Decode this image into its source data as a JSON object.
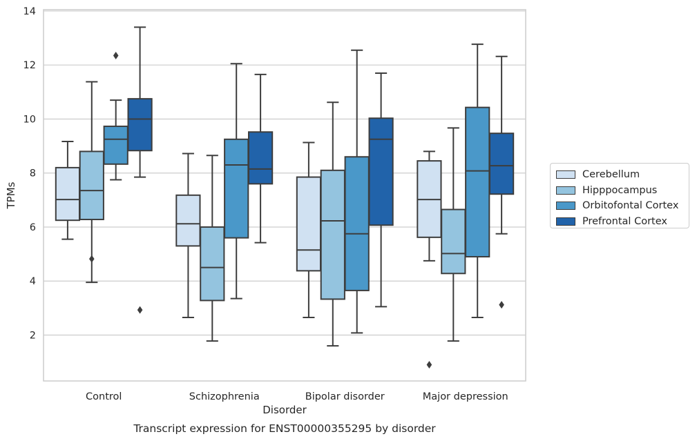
{
  "chart_data": {
    "type": "box",
    "title": "",
    "caption": "Transcript expression for ENST00000355295 by disorder",
    "xlabel": "Disorder",
    "ylabel": "TPMs",
    "ylim": [
      0.3,
      14.05
    ],
    "yticks": [
      2,
      4,
      6,
      8,
      10,
      12,
      14
    ],
    "grid": "horizontal",
    "legend_placement": "outside-right",
    "categories": [
      "Control",
      "Schizophrenia",
      "Bipolar disorder",
      "Major depression"
    ],
    "series": [
      {
        "name": "Cerebellum",
        "color": "#d0e1f2",
        "boxes": [
          {
            "whisker_low": 5.55,
            "q1": 6.25,
            "median": 7.02,
            "q3": 8.2,
            "whisker_high": 9.17,
            "outliers": []
          },
          {
            "whisker_low": 2.65,
            "q1": 5.3,
            "median": 6.12,
            "q3": 7.18,
            "whisker_high": 8.72,
            "outliers": []
          },
          {
            "whisker_low": 2.65,
            "q1": 4.38,
            "median": 5.15,
            "q3": 7.85,
            "whisker_high": 9.13,
            "outliers": []
          },
          {
            "whisker_low": 4.75,
            "q1": 5.62,
            "median": 7.02,
            "q3": 8.45,
            "whisker_high": 8.8,
            "outliers": [
              0.9
            ]
          }
        ]
      },
      {
        "name": "Hipppocampus",
        "color": "#94c4df",
        "boxes": [
          {
            "whisker_low": 3.95,
            "q1": 6.28,
            "median": 7.35,
            "q3": 8.8,
            "whisker_high": 11.38,
            "outliers": [
              4.82
            ]
          },
          {
            "whisker_low": 1.78,
            "q1": 3.28,
            "median": 4.5,
            "q3": 6.0,
            "whisker_high": 8.65,
            "outliers": []
          },
          {
            "whisker_low": 1.6,
            "q1": 3.33,
            "median": 6.23,
            "q3": 8.1,
            "whisker_high": 10.62,
            "outliers": []
          },
          {
            "whisker_low": 1.78,
            "q1": 4.28,
            "median": 5.02,
            "q3": 6.65,
            "whisker_high": 9.67,
            "outliers": []
          }
        ]
      },
      {
        "name": "Orbitofontal Cortex",
        "color": "#4a98c9",
        "boxes": [
          {
            "whisker_low": 7.75,
            "q1": 8.33,
            "median": 9.25,
            "q3": 9.73,
            "whisker_high": 10.7,
            "outliers": [
              12.35
            ]
          },
          {
            "whisker_low": 3.35,
            "q1": 5.6,
            "median": 8.3,
            "q3": 9.25,
            "whisker_high": 12.05,
            "outliers": []
          },
          {
            "whisker_low": 2.08,
            "q1": 3.65,
            "median": 5.75,
            "q3": 8.6,
            "whisker_high": 12.55,
            "outliers": []
          },
          {
            "whisker_low": 2.65,
            "q1": 4.9,
            "median": 8.08,
            "q3": 10.43,
            "whisker_high": 12.77,
            "outliers": []
          }
        ]
      },
      {
        "name": "Prefrontal Cortex",
        "color": "#2163aa",
        "boxes": [
          {
            "whisker_low": 7.85,
            "q1": 8.83,
            "median": 10.0,
            "q3": 10.75,
            "whisker_high": 13.4,
            "outliers": [
              2.93
            ]
          },
          {
            "whisker_low": 5.42,
            "q1": 7.6,
            "median": 8.15,
            "q3": 9.52,
            "whisker_high": 11.65,
            "outliers": []
          },
          {
            "whisker_low": 3.05,
            "q1": 6.07,
            "median": 9.25,
            "q3": 10.03,
            "whisker_high": 11.7,
            "outliers": []
          },
          {
            "whisker_low": 5.75,
            "q1": 7.22,
            "median": 8.27,
            "q3": 9.47,
            "whisker_high": 12.32,
            "outliers": [
              3.12
            ]
          }
        ]
      }
    ]
  }
}
